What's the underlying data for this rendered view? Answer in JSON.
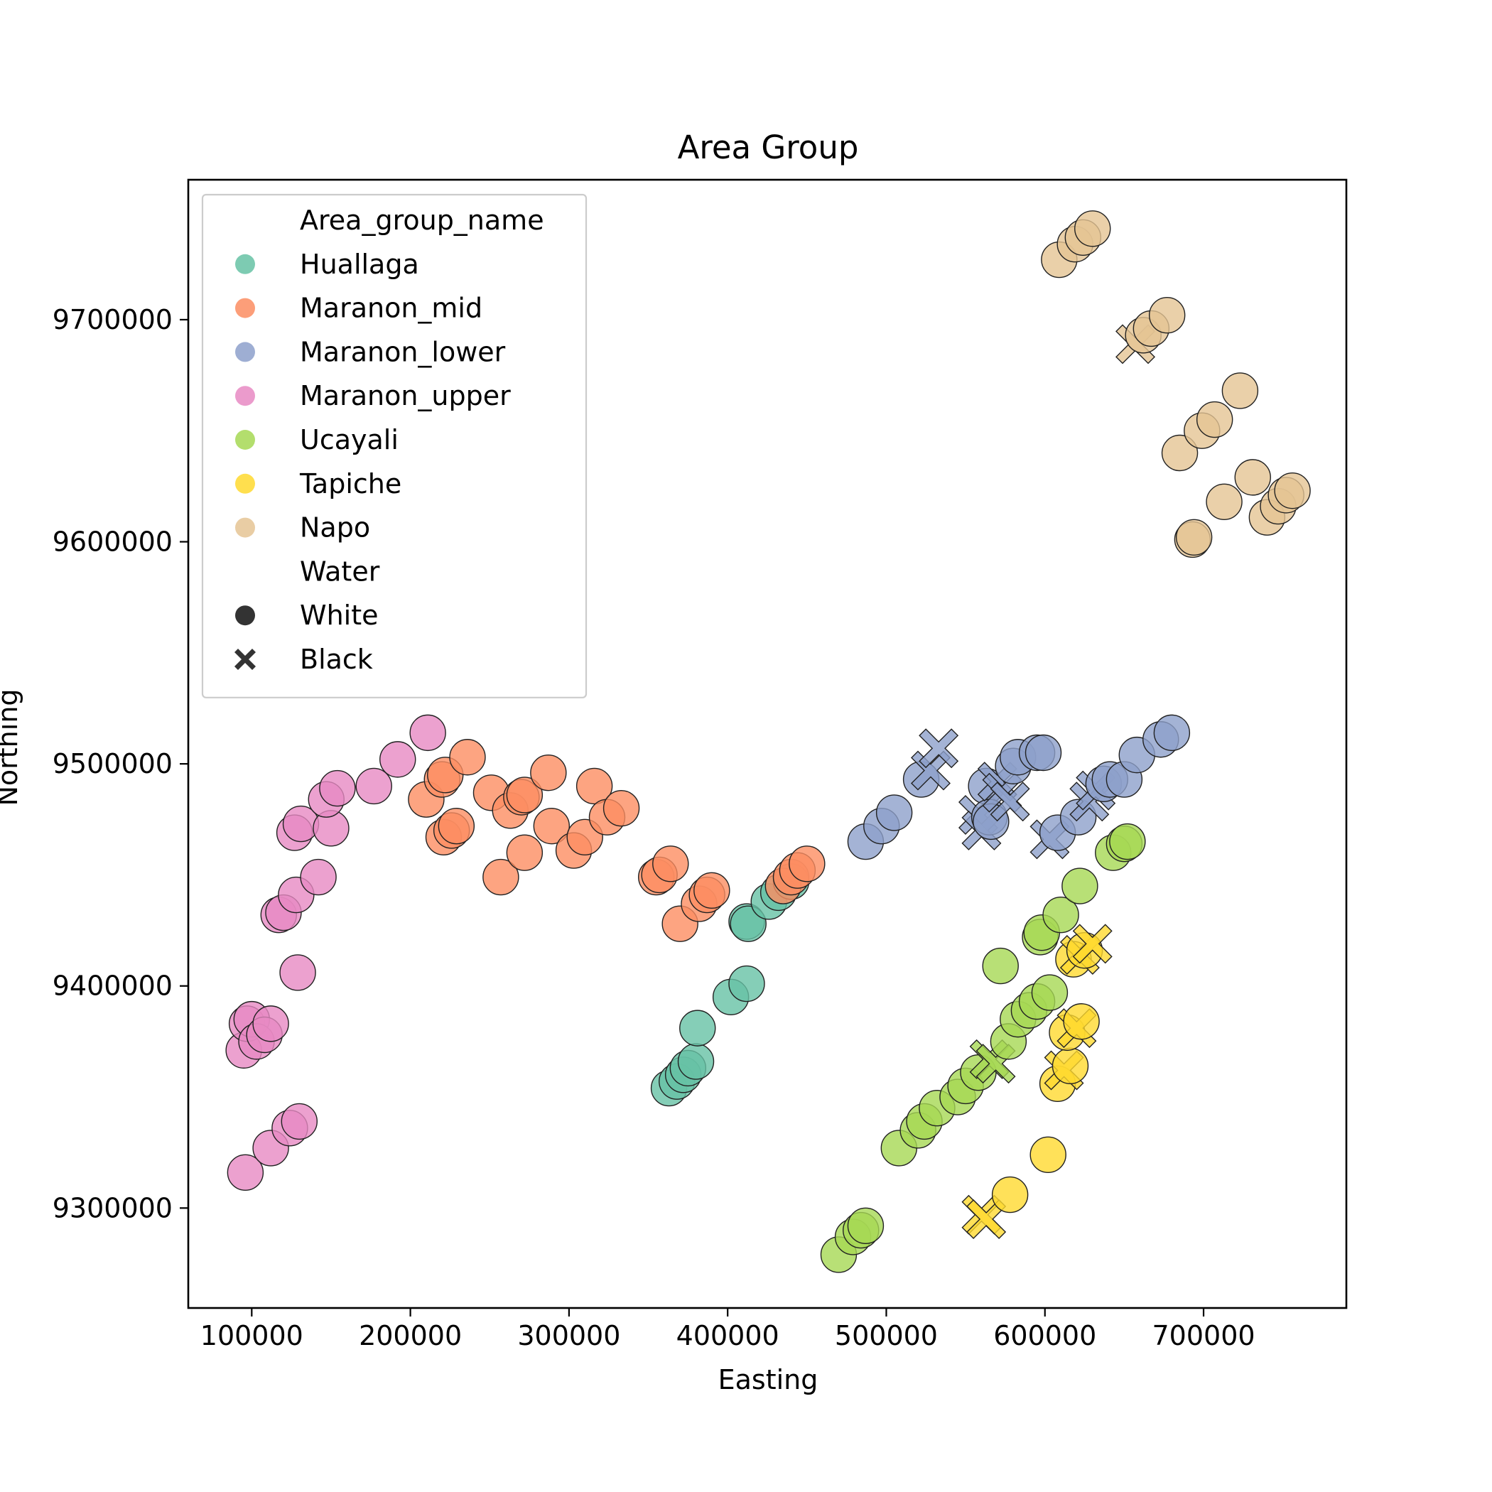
{
  "chart_data": {
    "type": "scatter",
    "title": "Area Group",
    "xlabel": "Easting",
    "ylabel": "Northing",
    "xlim": [
      60000,
      790000
    ],
    "ylim": [
      9255000,
      9763000
    ],
    "xticks": [
      100000,
      200000,
      300000,
      400000,
      500000,
      600000,
      700000
    ],
    "yticks": [
      9300000,
      9400000,
      9500000,
      9600000,
      9700000
    ],
    "xtick_labels": [
      "100000",
      "200000",
      "300000",
      "400000",
      "500000",
      "600000",
      "700000"
    ],
    "ytick_labels": [
      "9300000",
      "9400000",
      "9500000",
      "9600000",
      "9700000"
    ],
    "grid": false,
    "legend": {
      "placement": "top-left",
      "hue_title": "Area_group_name",
      "style_title": "Water",
      "style_entries": [
        {
          "label": "White",
          "marker": "circle"
        },
        {
          "label": "Black",
          "marker": "x"
        }
      ]
    },
    "series": [
      {
        "name": "Huallaga",
        "color": "#66c2a5",
        "points": [
          [
            363000,
            9354000,
            "White"
          ],
          [
            368000,
            9357000,
            "White"
          ],
          [
            372000,
            9360000,
            "White"
          ],
          [
            375000,
            9363000,
            "White"
          ],
          [
            380000,
            9366000,
            "White"
          ],
          [
            381000,
            9381000,
            "White"
          ],
          [
            402000,
            9395000,
            "White"
          ],
          [
            412000,
            9401000,
            "White"
          ],
          [
            412000,
            9429000,
            "White"
          ],
          [
            413000,
            9428000,
            "White"
          ],
          [
            426000,
            9438000,
            "White"
          ],
          [
            432000,
            9442000,
            "White"
          ],
          [
            440000,
            9447000,
            "White"
          ]
        ]
      },
      {
        "name": "Maranon_mid",
        "color": "#fc8d62",
        "points": [
          [
            210000,
            9484000,
            "White"
          ],
          [
            220000,
            9493000,
            "White"
          ],
          [
            222000,
            9495000,
            "White"
          ],
          [
            221000,
            9467000,
            "White"
          ],
          [
            226000,
            9470000,
            "White"
          ],
          [
            229000,
            9472000,
            "White"
          ],
          [
            236000,
            9503000,
            "White"
          ],
          [
            251000,
            9487000,
            "White"
          ],
          [
            257000,
            9449000,
            "White"
          ],
          [
            263000,
            9479000,
            "White"
          ],
          [
            270000,
            9485000,
            "White"
          ],
          [
            272000,
            9486000,
            "White"
          ],
          [
            272000,
            9460000,
            "White"
          ],
          [
            287000,
            9496000,
            "White"
          ],
          [
            289000,
            9472000,
            "White"
          ],
          [
            303000,
            9461000,
            "White"
          ],
          [
            310000,
            9467000,
            "White"
          ],
          [
            316000,
            9490000,
            "White"
          ],
          [
            324000,
            9476000,
            "White"
          ],
          [
            333000,
            9480000,
            "White"
          ],
          [
            355000,
            9449000,
            "White"
          ],
          [
            357000,
            9450000,
            "White"
          ],
          [
            364000,
            9455000,
            "White"
          ],
          [
            370000,
            9428000,
            "White"
          ],
          [
            382000,
            9437000,
            "White"
          ],
          [
            387000,
            9441000,
            "White"
          ],
          [
            390000,
            9443000,
            "White"
          ],
          [
            435000,
            9445000,
            "White"
          ],
          [
            440000,
            9449000,
            "White"
          ],
          [
            444000,
            9452000,
            "White"
          ],
          [
            450000,
            9455000,
            "White"
          ]
        ]
      },
      {
        "name": "Maranon_lower",
        "color": "#8da0cb",
        "points": [
          [
            487000,
            9465000,
            "White"
          ],
          [
            497000,
            9472000,
            "White"
          ],
          [
            505000,
            9478000,
            "White"
          ],
          [
            522000,
            9493000,
            "White"
          ],
          [
            528000,
            9497000,
            "Black"
          ],
          [
            533000,
            9507000,
            "Black"
          ],
          [
            558000,
            9477000,
            "Black"
          ],
          [
            560000,
            9470000,
            "Black"
          ],
          [
            563000,
            9490000,
            "White"
          ],
          [
            565000,
            9476000,
            "White"
          ],
          [
            566000,
            9474000,
            "White"
          ],
          [
            570000,
            9492000,
            "Black"
          ],
          [
            573000,
            9487000,
            "Black"
          ],
          [
            578000,
            9483000,
            "Black"
          ],
          [
            580000,
            9499000,
            "White"
          ],
          [
            583000,
            9503000,
            "White"
          ],
          [
            595000,
            9505000,
            "White"
          ],
          [
            599000,
            9505000,
            "White"
          ],
          [
            603000,
            9466000,
            "Black"
          ],
          [
            608000,
            9469000,
            "White"
          ],
          [
            621000,
            9476000,
            "White"
          ],
          [
            628000,
            9483000,
            "Black"
          ],
          [
            632000,
            9488000,
            "Black"
          ],
          [
            637000,
            9491000,
            "White"
          ],
          [
            641000,
            9493000,
            "White"
          ],
          [
            650000,
            9493000,
            "White"
          ],
          [
            658000,
            9504000,
            "White"
          ],
          [
            673000,
            9511000,
            "White"
          ],
          [
            680000,
            9514000,
            "White"
          ]
        ]
      },
      {
        "name": "Maranon_upper",
        "color": "#e78ac3",
        "points": [
          [
            96000,
            9316000,
            "White"
          ],
          [
            112000,
            9327000,
            "White"
          ],
          [
            124000,
            9336000,
            "White"
          ],
          [
            130000,
            9339000,
            "White"
          ],
          [
            95000,
            9371000,
            "White"
          ],
          [
            97000,
            9383000,
            "White"
          ],
          [
            100000,
            9385000,
            "White"
          ],
          [
            103000,
            9375000,
            "White"
          ],
          [
            108000,
            9378000,
            "White"
          ],
          [
            112000,
            9383000,
            "White"
          ],
          [
            117000,
            9432000,
            "White"
          ],
          [
            120000,
            9433000,
            "White"
          ],
          [
            129000,
            9406000,
            "White"
          ],
          [
            128000,
            9441000,
            "White"
          ],
          [
            142000,
            9449000,
            "White"
          ],
          [
            127000,
            9469000,
            "White"
          ],
          [
            131000,
            9473000,
            "White"
          ],
          [
            150000,
            9471000,
            "White"
          ],
          [
            147000,
            9484000,
            "White"
          ],
          [
            154000,
            9489000,
            "White"
          ],
          [
            177000,
            9490000,
            "White"
          ],
          [
            192000,
            9502000,
            "White"
          ],
          [
            211000,
            9514000,
            "White"
          ]
        ]
      },
      {
        "name": "Ucayali",
        "color": "#a6d854",
        "points": [
          [
            470000,
            9279000,
            "White"
          ],
          [
            479000,
            9287000,
            "White"
          ],
          [
            484000,
            9290000,
            "White"
          ],
          [
            487000,
            9292000,
            "White"
          ],
          [
            508000,
            9327000,
            "White"
          ],
          [
            520000,
            9335000,
            "White"
          ],
          [
            524000,
            9339000,
            "White"
          ],
          [
            532000,
            9345000,
            "White"
          ],
          [
            545000,
            9350000,
            "White"
          ],
          [
            550000,
            9355000,
            "White"
          ],
          [
            558000,
            9361000,
            "White"
          ],
          [
            565000,
            9367000,
            "Black"
          ],
          [
            569000,
            9365000,
            "Black"
          ],
          [
            572000,
            9409000,
            "White"
          ],
          [
            577000,
            9375000,
            "White"
          ],
          [
            583000,
            9385000,
            "White"
          ],
          [
            590000,
            9389000,
            "White"
          ],
          [
            595000,
            9393000,
            "White"
          ],
          [
            597000,
            9422000,
            "White"
          ],
          [
            598000,
            9424000,
            "White"
          ],
          [
            603000,
            9397000,
            "White"
          ],
          [
            610000,
            9432000,
            "White"
          ],
          [
            622000,
            9445000,
            "White"
          ],
          [
            643000,
            9460000,
            "White"
          ],
          [
            650000,
            9464000,
            "White"
          ],
          [
            652000,
            9465000,
            "White"
          ]
        ]
      },
      {
        "name": "Tapiche",
        "color": "#ffd92f",
        "points": [
          [
            560000,
            9297000,
            "Black"
          ],
          [
            563000,
            9295000,
            "Black"
          ],
          [
            578000,
            9306000,
            "White"
          ],
          [
            602000,
            9324000,
            "White"
          ],
          [
            608000,
            9356000,
            "White"
          ],
          [
            612000,
            9362000,
            "Black"
          ],
          [
            616000,
            9364000,
            "White"
          ],
          [
            614000,
            9379000,
            "White"
          ],
          [
            620000,
            9381000,
            "Black"
          ],
          [
            623000,
            9384000,
            "White"
          ],
          [
            618000,
            9412000,
            "White"
          ],
          [
            622000,
            9414000,
            "Black"
          ],
          [
            625000,
            9416000,
            "White"
          ],
          [
            630000,
            9419000,
            "Black"
          ]
        ]
      },
      {
        "name": "Napo",
        "color": "#e5c494",
        "points": [
          [
            609000,
            9727000,
            "White"
          ],
          [
            619000,
            9734000,
            "White"
          ],
          [
            624000,
            9737000,
            "White"
          ],
          [
            630000,
            9741000,
            "White"
          ],
          [
            657000,
            9689000,
            "Black"
          ],
          [
            662000,
            9693000,
            "White"
          ],
          [
            667000,
            9696000,
            "White"
          ],
          [
            677000,
            9702000,
            "White"
          ],
          [
            723000,
            9668000,
            "White"
          ],
          [
            685000,
            9640000,
            "White"
          ],
          [
            699000,
            9650000,
            "White"
          ],
          [
            707000,
            9655000,
            "White"
          ],
          [
            693000,
            9601000,
            "White"
          ],
          [
            694000,
            9602000,
            "White"
          ],
          [
            713000,
            9618000,
            "White"
          ],
          [
            731000,
            9629000,
            "White"
          ],
          [
            740000,
            9611000,
            "White"
          ],
          [
            747000,
            9616000,
            "White"
          ],
          [
            752000,
            9621000,
            "White"
          ],
          [
            756000,
            9623000,
            "White"
          ]
        ]
      }
    ]
  }
}
